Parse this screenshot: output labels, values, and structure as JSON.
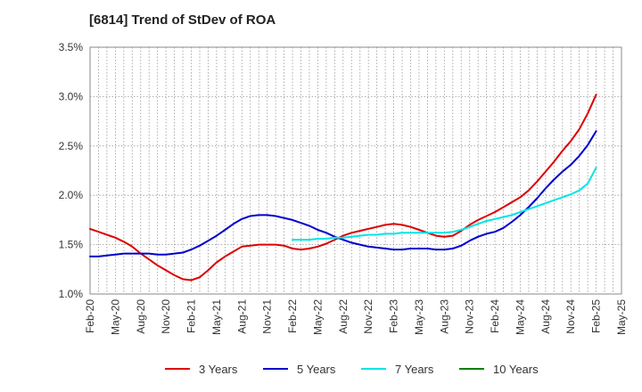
{
  "chart_data": {
    "type": "line",
    "title": "[6814]  Trend of StDev of ROA",
    "xlabel": "",
    "ylabel": "",
    "ylim": [
      1.0,
      3.5
    ],
    "yticks": [
      "1.0%",
      "1.5%",
      "2.0%",
      "2.5%",
      "3.0%",
      "3.5%"
    ],
    "yticks_values": [
      1.0,
      1.5,
      2.0,
      2.5,
      3.0,
      3.5
    ],
    "xticks": [
      "Feb-20",
      "May-20",
      "Aug-20",
      "Nov-20",
      "Feb-21",
      "May-21",
      "Aug-21",
      "Nov-21",
      "Feb-22",
      "May-22",
      "Aug-22",
      "Nov-22",
      "Feb-23",
      "May-23",
      "Aug-23",
      "Nov-23",
      "Feb-24",
      "May-24",
      "Aug-24",
      "Nov-24",
      "Feb-25",
      "May-25"
    ],
    "grid": true,
    "legend_position": "bottom",
    "series": [
      {
        "name": "3 Years",
        "color": "#dd0000",
        "x": [
          "Feb-20",
          "Mar-20",
          "Apr-20",
          "May-20",
          "Jun-20",
          "Jul-20",
          "Aug-20",
          "Sep-20",
          "Oct-20",
          "Nov-20",
          "Dec-20",
          "Jan-21",
          "Feb-21",
          "Mar-21",
          "Apr-21",
          "May-21",
          "Jun-21",
          "Jul-21",
          "Aug-21",
          "Sep-21",
          "Oct-21",
          "Nov-21",
          "Dec-21",
          "Jan-22",
          "Feb-22",
          "Mar-22",
          "Apr-22",
          "May-22",
          "Jun-22",
          "Jul-22",
          "Aug-22",
          "Sep-22",
          "Oct-22",
          "Nov-22",
          "Dec-22",
          "Jan-23",
          "Feb-23",
          "Mar-23",
          "Apr-23",
          "May-23",
          "Jun-23",
          "Jul-23",
          "Aug-23",
          "Sep-23",
          "Oct-23",
          "Nov-23",
          "Dec-23",
          "Jan-24",
          "Feb-24",
          "Mar-24",
          "Apr-24",
          "May-24",
          "Jun-24",
          "Jul-24",
          "Aug-24",
          "Sep-24",
          "Oct-24",
          "Nov-24",
          "Dec-24",
          "Jan-25",
          "Feb-25"
        ],
        "values": [
          1.66,
          1.63,
          1.6,
          1.57,
          1.53,
          1.48,
          1.41,
          1.35,
          1.29,
          1.24,
          1.19,
          1.15,
          1.14,
          1.17,
          1.24,
          1.32,
          1.38,
          1.43,
          1.48,
          1.49,
          1.5,
          1.5,
          1.5,
          1.49,
          1.46,
          1.45,
          1.46,
          1.48,
          1.51,
          1.55,
          1.59,
          1.62,
          1.64,
          1.66,
          1.68,
          1.7,
          1.71,
          1.7,
          1.68,
          1.65,
          1.62,
          1.59,
          1.58,
          1.59,
          1.64,
          1.7,
          1.75,
          1.79,
          1.83,
          1.88,
          1.93,
          1.98,
          2.05,
          2.14,
          2.24,
          2.34,
          2.45,
          2.55,
          2.67,
          2.83,
          3.02
        ]
      },
      {
        "name": "5 Years",
        "color": "#0000cc",
        "x": [
          "Feb-20",
          "Mar-20",
          "Apr-20",
          "May-20",
          "Jun-20",
          "Jul-20",
          "Aug-20",
          "Sep-20",
          "Oct-20",
          "Nov-20",
          "Dec-20",
          "Jan-21",
          "Feb-21",
          "Mar-21",
          "Apr-21",
          "May-21",
          "Jun-21",
          "Jul-21",
          "Aug-21",
          "Sep-21",
          "Oct-21",
          "Nov-21",
          "Dec-21",
          "Jan-22",
          "Feb-22",
          "Mar-22",
          "Apr-22",
          "May-22",
          "Jun-22",
          "Jul-22",
          "Aug-22",
          "Sep-22",
          "Oct-22",
          "Nov-22",
          "Dec-22",
          "Jan-23",
          "Feb-23",
          "Mar-23",
          "Apr-23",
          "May-23",
          "Jun-23",
          "Jul-23",
          "Aug-23",
          "Sep-23",
          "Oct-23",
          "Nov-23",
          "Dec-23",
          "Jan-24",
          "Feb-24",
          "Mar-24",
          "Apr-24",
          "May-24",
          "Jun-24",
          "Jul-24",
          "Aug-24",
          "Sep-24",
          "Oct-24",
          "Nov-24",
          "Dec-24",
          "Jan-25",
          "Feb-25"
        ],
        "values": [
          1.38,
          1.38,
          1.39,
          1.4,
          1.41,
          1.41,
          1.41,
          1.41,
          1.4,
          1.4,
          1.41,
          1.42,
          1.45,
          1.49,
          1.54,
          1.59,
          1.65,
          1.71,
          1.76,
          1.79,
          1.8,
          1.8,
          1.79,
          1.77,
          1.75,
          1.72,
          1.69,
          1.65,
          1.62,
          1.58,
          1.55,
          1.52,
          1.5,
          1.48,
          1.47,
          1.46,
          1.45,
          1.45,
          1.46,
          1.46,
          1.46,
          1.45,
          1.45,
          1.46,
          1.49,
          1.54,
          1.58,
          1.61,
          1.63,
          1.67,
          1.73,
          1.8,
          1.88,
          1.97,
          2.07,
          2.16,
          2.24,
          2.31,
          2.4,
          2.51,
          2.65
        ]
      },
      {
        "name": "7 Years",
        "color": "#00e5e5",
        "x": [
          "Feb-22",
          "Mar-22",
          "Apr-22",
          "May-22",
          "Jun-22",
          "Jul-22",
          "Aug-22",
          "Sep-22",
          "Oct-22",
          "Nov-22",
          "Dec-22",
          "Jan-23",
          "Feb-23",
          "Mar-23",
          "Apr-23",
          "May-23",
          "Jun-23",
          "Jul-23",
          "Aug-23",
          "Sep-23",
          "Oct-23",
          "Nov-23",
          "Dec-23",
          "Jan-24",
          "Feb-24",
          "Mar-24",
          "Apr-24",
          "May-24",
          "Jun-24",
          "Jul-24",
          "Aug-24",
          "Sep-24",
          "Oct-24",
          "Nov-24",
          "Dec-24",
          "Jan-25",
          "Feb-25"
        ],
        "values": [
          1.55,
          1.55,
          1.55,
          1.56,
          1.56,
          1.57,
          1.57,
          1.58,
          1.59,
          1.6,
          1.6,
          1.61,
          1.61,
          1.62,
          1.62,
          1.62,
          1.62,
          1.62,
          1.62,
          1.63,
          1.65,
          1.68,
          1.71,
          1.74,
          1.76,
          1.78,
          1.8,
          1.83,
          1.86,
          1.89,
          1.92,
          1.95,
          1.98,
          2.01,
          2.05,
          2.12,
          2.28
        ]
      },
      {
        "name": "10 Years",
        "color": "#008000",
        "x": [],
        "values": []
      }
    ]
  }
}
